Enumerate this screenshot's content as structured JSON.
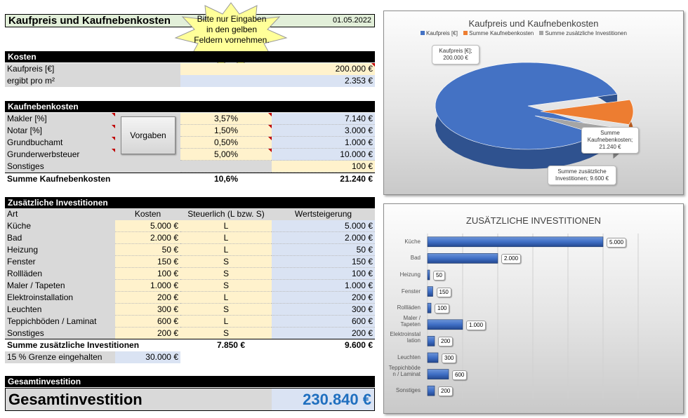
{
  "header": {
    "title": "Kaufpreis und Kaufnebenkosten",
    "date": "01.05.2022",
    "star_note": "Bitte nur Eingaben in den gelben Feldern vornehmen."
  },
  "kosten": {
    "title": "Kosten",
    "kaufpreis_label": "Kaufpreis [€]",
    "kaufpreis_value": "200.000 €",
    "pro_m2_label": "ergibt pro m²",
    "pro_m2_value": "2.353 €"
  },
  "nebenkosten": {
    "title": "Kaufnebenkosten",
    "button": "Vorgaben",
    "rows": [
      {
        "label": "Makler [%]",
        "pct": "3,57%",
        "value": "7.140 €"
      },
      {
        "label": "Notar  [%]",
        "pct": "1,50%",
        "value": "3.000 €"
      },
      {
        "label": "Grundbuchamt",
        "pct": "0,50%",
        "value": "1.000 €"
      },
      {
        "label": "Grunderwerbsteuer",
        "pct": "5,00%",
        "value": "10.000 €"
      },
      {
        "label": "Sonstiges",
        "pct": "",
        "value": "100 €"
      }
    ],
    "sum_label": "Summe Kaufnebenkosten",
    "sum_pct": "10,6%",
    "sum_value": "21.240 €"
  },
  "investitionen": {
    "title": "Zusätzliche Investitionen",
    "col_art": "Art",
    "col_kosten": "Kosten",
    "col_steuer": "Steuerlich   (L bzw. S)",
    "col_wert": "Wertsteigerung",
    "rows": [
      {
        "art": "Küche",
        "kosten": "5.000 €",
        "steuer": "L",
        "wert": "5.000 €"
      },
      {
        "art": "Bad",
        "kosten": "2.000 €",
        "steuer": "L",
        "wert": "2.000 €"
      },
      {
        "art": "Heizung",
        "kosten": "50 €",
        "steuer": "L",
        "wert": "50 €"
      },
      {
        "art": "Fenster",
        "kosten": "150 €",
        "steuer": "S",
        "wert": "150 €"
      },
      {
        "art": "Rollläden",
        "kosten": "100 €",
        "steuer": "S",
        "wert": "100 €"
      },
      {
        "art": "Maler / Tapeten",
        "kosten": "1.000 €",
        "steuer": "S",
        "wert": "1.000 €"
      },
      {
        "art": "Elektroinstallation",
        "kosten": "200 €",
        "steuer": "L",
        "wert": "200 €"
      },
      {
        "art": "Leuchten",
        "kosten": "300 €",
        "steuer": "S",
        "wert": "300 €"
      },
      {
        "art": "Teppichböden / Laminat",
        "kosten": "600 €",
        "steuer": "L",
        "wert": "600 €"
      },
      {
        "art": "Sonstiges",
        "kosten": "200 €",
        "steuer": "S",
        "wert": "200 €"
      }
    ],
    "sum_label": "Summe zusätzliche Investitionen",
    "sum_kosten": "7.850 €",
    "sum_wert": "9.600 €",
    "grenze_label": "15 % Grenze eingehalten",
    "grenze_value": "30.000 €"
  },
  "gesamt": {
    "title": "Gesamtinvestition",
    "label": "Gesamtinvestition",
    "value": "230.840 €"
  },
  "colors": {
    "accent": "#1f6fbf",
    "yellow": "#fff2cc",
    "blue": "#dae3f3",
    "grey": "#d9d9d9",
    "pie_blue": "#4472c4",
    "pie_orange": "#ed7d31",
    "pie_grey": "#a5a5a5"
  },
  "chart_data": [
    {
      "type": "pie",
      "title": "Kaufpreis und Kaufnebenkosten",
      "legend": [
        "Kaufpreis [€]",
        "Summe Kaufnebenkosten",
        "Summe zusätzliche Investitionen"
      ],
      "categories": [
        "Kaufpreis [€]",
        "Summe Kaufnebenkosten",
        "Summe zusätzliche Investitionen"
      ],
      "values": [
        200000,
        21240,
        9600
      ],
      "data_labels": [
        "Kaufpreis [€]; 200.000 €",
        "Summe Kaufnebenkosten; 21.240 €",
        "Summe zusätzliche Investitionen; 9.600 €"
      ]
    },
    {
      "type": "bar",
      "title": "ZUSÄTZLICHE INVESTITIONEN",
      "categories": [
        "Küche",
        "Bad",
        "Heizung",
        "Fenster",
        "Rollläden",
        "Maler / Tapeten",
        "Elektroinstallation",
        "Leuchten",
        "Teppichböden / Laminat",
        "Sonstiges"
      ],
      "category_labels": [
        "Küche",
        "Bad",
        "Heizung",
        "Fenster",
        "Rollläden",
        "Maler / Tapeten",
        "Elektroinstal lation",
        "Leuchten",
        "Teppichböde n / Laminat",
        "Sonstiges"
      ],
      "values": [
        5000,
        2000,
        50,
        150,
        100,
        1000,
        200,
        300,
        600,
        200
      ],
      "value_labels": [
        "5.000",
        "2.000",
        "50",
        "150",
        "100",
        "1.000",
        "200",
        "300",
        "600",
        "200"
      ],
      "xlim": [
        0,
        6000
      ]
    }
  ]
}
